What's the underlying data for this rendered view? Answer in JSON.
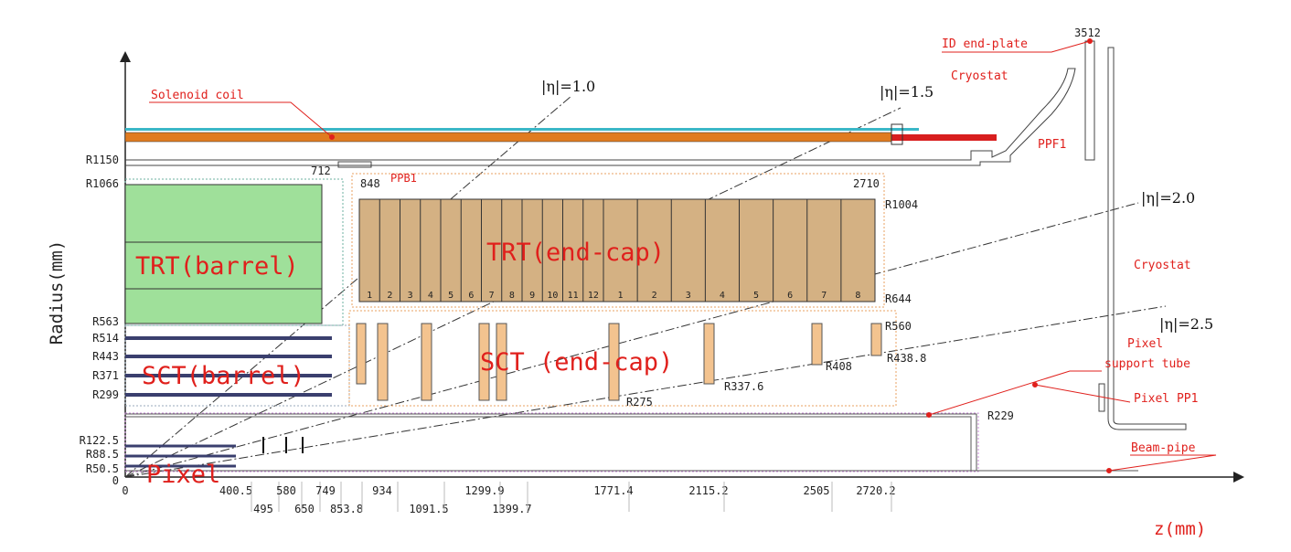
{
  "axes": {
    "y_label": "Radius(mm)",
    "x_label": "z(mm)"
  },
  "eta_lines": [
    "|η|=1.0",
    "|η|=1.5",
    "|η|=2.0",
    "|η|=2.5"
  ],
  "components": {
    "solenoid": "Solenoid coil",
    "id_end_plate": "ID end-plate",
    "cryostat_top": "Cryostat",
    "ppf1": "PPF1",
    "cryostat_right": "Cryostat",
    "ppb1": "PPB1",
    "trt_barrel": "TRT(barrel)",
    "trt_endcap": "TRT(end-cap)",
    "sct_barrel": "SCT(barrel)",
    "sct_endcap": "SCT (end-cap)",
    "pixel": "Pixel",
    "pixel_support_tube": [
      "Pixel",
      "support tube"
    ],
    "pixel_pp1": "Pixel PP1",
    "beam_pipe": "Beam-pipe"
  },
  "radius_labels_left": [
    "R1150",
    "R1066",
    "R563",
    "R514",
    "R443",
    "R371",
    "R299",
    "R122.5",
    "R88.5",
    "R50.5",
    "0"
  ],
  "radius_labels_right": [
    "R1004",
    "R644",
    "R560",
    "R438.8",
    "R408",
    "R337.6",
    "R275",
    "R229"
  ],
  "z_labels_top": [
    "712",
    "848",
    "2710",
    "3512"
  ],
  "z_labels_bottom": [
    "0",
    "400.5",
    "495",
    "580",
    "650",
    "749",
    "853.8",
    "934",
    "1091.5",
    "1299.9",
    "1399.7",
    "1771.4",
    "2115.2",
    "2505",
    "2720.2"
  ],
  "trt_wheel_numbers": [
    "1",
    "2",
    "3",
    "4",
    "5",
    "6",
    "7",
    "8",
    "9",
    "10",
    "11",
    "12",
    "1",
    "2",
    "3",
    "4",
    "5",
    "6",
    "7",
    "8"
  ]
}
